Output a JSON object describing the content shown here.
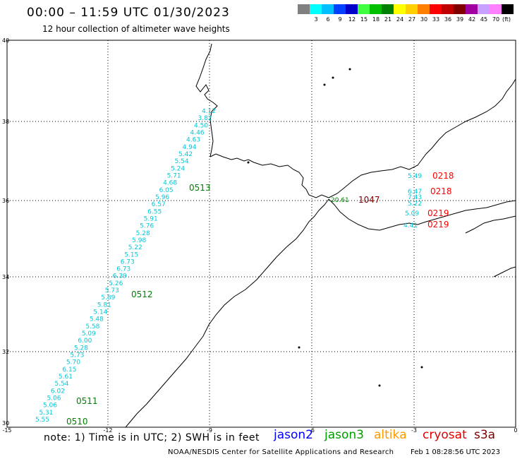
{
  "header": {
    "title": "00:00 – 11:59 UTC 01/30/2023",
    "subtitle": "12 hour collection of altimeter wave heights"
  },
  "scale": {
    "unit": "(ft)",
    "items": [
      {
        "label": "",
        "color": "#808080"
      },
      {
        "label": "3",
        "color": "#00ffff"
      },
      {
        "label": "6",
        "color": "#00bfff"
      },
      {
        "label": "9",
        "color": "#0040ff"
      },
      {
        "label": "12",
        "color": "#0000c8"
      },
      {
        "label": "15",
        "color": "#40ff40"
      },
      {
        "label": "18",
        "color": "#00c000"
      },
      {
        "label": "21",
        "color": "#008000"
      },
      {
        "label": "24",
        "color": "#ffff00"
      },
      {
        "label": "27",
        "color": "#ffd000"
      },
      {
        "label": "30",
        "color": "#ff8000"
      },
      {
        "label": "33",
        "color": "#ff0000"
      },
      {
        "label": "36",
        "color": "#c00000"
      },
      {
        "label": "39",
        "color": "#800000"
      },
      {
        "label": "42",
        "color": "#a000a0"
      },
      {
        "label": "45",
        "color": "#c8a0ff"
      },
      {
        "label": "70",
        "color": "#ff80ff"
      },
      {
        "label": "",
        "color": "#000000"
      }
    ]
  },
  "map": {
    "lon_ticks": [
      "-15",
      "-12",
      "-9",
      "-6",
      "-3",
      "0"
    ],
    "lat_ticks": [
      "40",
      "38",
      "36",
      "34",
      "32",
      "30"
    ],
    "track_color": "#00c8d8",
    "track_values": [
      "4.12",
      "3.82",
      "4.50",
      "4.46",
      "4.63",
      "4.94",
      "5.42",
      "5.54",
      "5.24",
      "5.71",
      "4.68",
      "6.05",
      "5.96",
      "6.57",
      "6.55",
      "5.91",
      "5.76",
      "5.28",
      "5.98",
      "5.22",
      "5.15",
      "6.73",
      "6.73",
      "6.39",
      "5.26",
      "5.73",
      "5.89",
      "5.81",
      "5.14",
      "5.48",
      "5.58",
      "5.09",
      "6.00",
      "5.28",
      "5.73",
      "5.70",
      "6.15",
      "5.61",
      "5.54",
      "6.02",
      "5.06",
      "5.06",
      "5.31",
      "5.55"
    ],
    "track_time_labels": [
      {
        "text": "0513",
        "color": "#008000"
      },
      {
        "text": "0512",
        "color": "#008000"
      },
      {
        "text": "0511",
        "color": "#008000"
      },
      {
        "text": "0510",
        "color": "#008000"
      }
    ],
    "med_values": [
      "5.49",
      "6.47",
      "7.43",
      "5.22",
      "5.09",
      "4.41"
    ],
    "med_time_labels": [
      {
        "text": "0218",
        "color": "#ff0000"
      },
      {
        "text": "0218",
        "color": "#ff0000"
      },
      {
        "text": "0219",
        "color": "#ff0000"
      },
      {
        "text": "0219",
        "color": "#ff0000"
      }
    ],
    "gibraltar_value": {
      "text": "20.61",
      "color": "#008000"
    },
    "gibraltar_time": {
      "text": "1047",
      "color": "#800000"
    }
  },
  "note": "note:  1) Time is in UTC;  2) SWH is in feet",
  "satellites": [
    {
      "name": "jason2",
      "color": "#0000ff"
    },
    {
      "name": "jason3",
      "color": "#00a000"
    },
    {
      "name": "altika",
      "color": "#ff9900"
    },
    {
      "name": "cryosat",
      "color": "#e00000"
    },
    {
      "name": "s3a",
      "color": "#800000"
    }
  ],
  "footer": {
    "agency": "NOAA/NESDIS Center for Satellite Applications and Research",
    "generated": "Feb  1 08:28:56 UTC 2023"
  }
}
